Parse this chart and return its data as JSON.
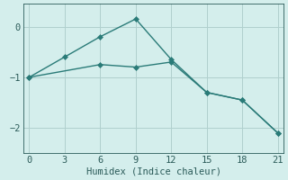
{
  "line1_x": [
    0,
    3,
    6,
    9,
    12,
    15,
    18,
    21
  ],
  "line1_y": [
    -1.0,
    -0.6,
    -0.2,
    0.15,
    -0.65,
    -1.3,
    -1.45,
    -2.1
  ],
  "line2_x": [
    0,
    6,
    9,
    12,
    15,
    18,
    21
  ],
  "line2_y": [
    -1.0,
    -0.75,
    -0.8,
    -0.7,
    -1.3,
    -1.45,
    -2.1
  ],
  "line_color": "#2a7b78",
  "bg_color": "#d4eeec",
  "grid_color": "#b0d0ce",
  "xlabel": "Humidex (Indice chaleur)",
  "xlim": [
    -0.5,
    21.5
  ],
  "ylim": [
    -2.5,
    0.45
  ],
  "xticks": [
    0,
    3,
    6,
    9,
    12,
    15,
    18,
    21
  ],
  "yticks": [
    0,
    -1,
    -2
  ],
  "tick_color": "#2a5a58",
  "marker": "D",
  "markersize": 3.0,
  "linewidth": 1.0,
  "xlabel_fontsize": 7.5,
  "tick_fontsize": 7.5
}
